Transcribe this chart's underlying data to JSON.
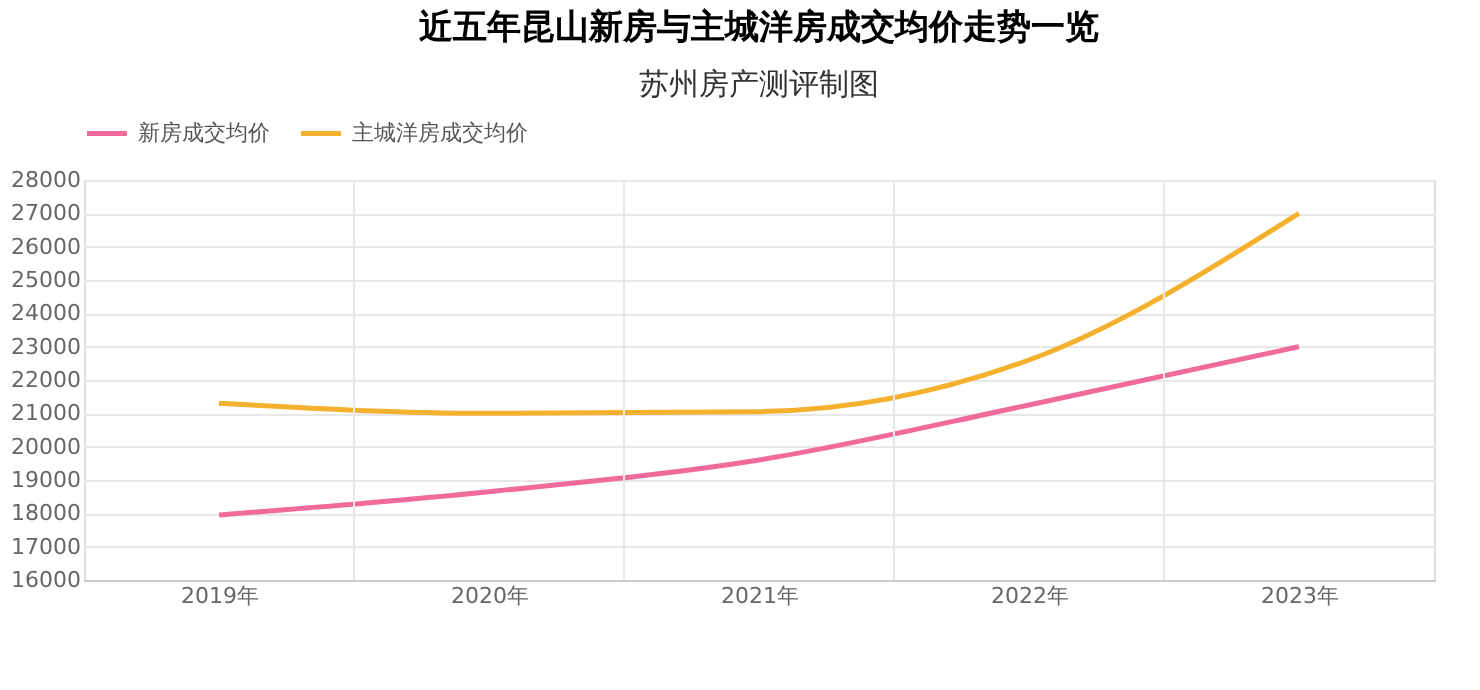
{
  "chart_data": {
    "type": "line",
    "title": "近五年昆山新房与主城洋房成交均价走势一览",
    "subtitle": "苏州房产测评制图",
    "categories": [
      "2019年",
      "2020年",
      "2021年",
      "2022年",
      "2023年"
    ],
    "series": [
      {
        "name": "新房成交均价",
        "color": "#f06b9c",
        "values": [
          17950,
          18650,
          19600,
          21250,
          23000
        ]
      },
      {
        "name": "主城洋房成交均价",
        "color": "#f5b02e",
        "values": [
          21300,
          21000,
          21050,
          22600,
          27000
        ]
      }
    ],
    "ylim": [
      16000,
      28000
    ],
    "yticks": [
      16000,
      17000,
      18000,
      19000,
      20000,
      21000,
      22000,
      23000,
      24000,
      25000,
      26000,
      27000,
      28000
    ],
    "grid": true,
    "legend": "top",
    "marker": "none"
  }
}
